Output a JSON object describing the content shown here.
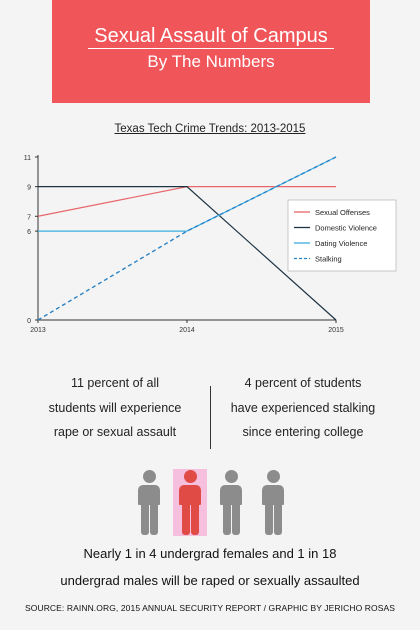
{
  "banner": {
    "title": "Sexual Assault of Campus",
    "subtitle": "By The Numbers",
    "color": "#f0555a"
  },
  "chart_data": {
    "type": "line",
    "title": "Texas Tech Crime Trends: 2013-2015",
    "xlabel": "",
    "ylabel": "",
    "categories": [
      "2013",
      "2014",
      "2015"
    ],
    "yticks": [
      0,
      6,
      7,
      9,
      11
    ],
    "ylim": [
      0,
      11
    ],
    "grid": false,
    "legend_position": "right",
    "series": [
      {
        "name": "Sexual Offenses",
        "values": [
          7,
          9,
          9
        ],
        "color": "#e8666a",
        "dash": false
      },
      {
        "name": "Domestic Violence",
        "values": [
          9,
          9,
          0
        ],
        "color": "#1e3444",
        "dash": false
      },
      {
        "name": "Dating Violence",
        "values": [
          6,
          6,
          11
        ],
        "color": "#3aaee0",
        "dash": false
      },
      {
        "name": "Stalking",
        "values": [
          0,
          6,
          11
        ],
        "color": "#2a82c4",
        "dash": true
      }
    ]
  },
  "stats": {
    "left": [
      "11 percent of all",
      "students will experience",
      "rape or sexual assault"
    ],
    "right": [
      "4 percent of students",
      "have experienced stalking",
      "since entering college"
    ]
  },
  "people": {
    "icons": [
      "person-icon",
      "person-highlighted-icon",
      "person-icon",
      "person-icon"
    ],
    "highlighted": 1,
    "colors": {
      "gray": "#8c8c8c",
      "red": "#e04c45",
      "highlight": "#f6bfdd"
    }
  },
  "summary": {
    "line1": "Nearly 1 in 4 undergrad females and 1 in 18",
    "line2": "undergrad males will be raped or sexually assaulted"
  },
  "source": "SOURCE: RAINN.ORG, 2015 ANNUAL SECURITY REPORT / GRAPHIC BY JERICHO ROSAS"
}
